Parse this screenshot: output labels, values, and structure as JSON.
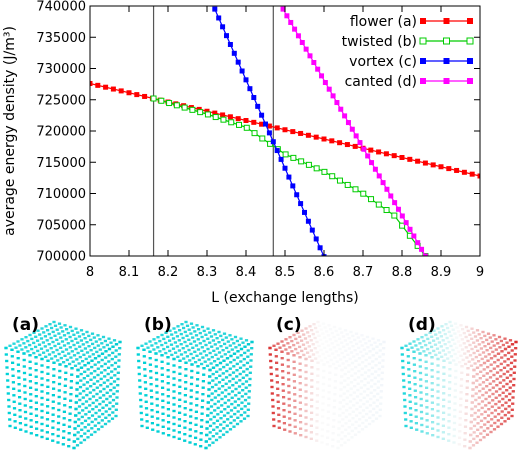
{
  "chart_data": {
    "type": "line",
    "xlabel": "L (exchange lengths)",
    "ylabel": "average energy density (J/m³)",
    "xlim": [
      8,
      9
    ],
    "ylim": [
      700000,
      740000
    ],
    "x_ticks": [
      "8",
      "8.1",
      "8.2",
      "8.3",
      "8.4",
      "8.5",
      "8.6",
      "8.7",
      "8.8",
      "8.9",
      "9"
    ],
    "y_ticks": [
      "700000",
      "705000",
      "710000",
      "715000",
      "720000",
      "725000",
      "730000",
      "735000",
      "740000"
    ],
    "vertical_lines": [
      8.163,
      8.47
    ],
    "grid": false,
    "legend_position": "top-right",
    "series": [
      {
        "name": "flower (a)",
        "color": "#ff0000",
        "marker": "filled-square",
        "points": [
          [
            8.0,
            727600
          ],
          [
            9.0,
            712800
          ]
        ],
        "step": 0.02
      },
      {
        "name": "twisted (b)",
        "color": "#00cc00",
        "marker": "open-square",
        "points": [
          [
            8.163,
            725200
          ],
          [
            8.3,
            722700
          ],
          [
            8.4,
            720600
          ],
          [
            8.5,
            716300
          ],
          [
            8.6,
            713500
          ],
          [
            8.7,
            710000
          ],
          [
            8.78,
            706500
          ],
          [
            8.86,
            700000
          ]
        ],
        "step": 0.02
      },
      {
        "name": "vortex (c)",
        "color": "#0000ff",
        "marker": "filled-square",
        "points": [
          [
            8.32,
            739500
          ],
          [
            8.6,
            699900
          ]
        ],
        "step": 0.01
      },
      {
        "name": "canted (d)",
        "color": "#ff00ff",
        "marker": "filled-square",
        "points": [
          [
            8.495,
            739500
          ],
          [
            8.86,
            700000
          ]
        ],
        "step": 0.01
      }
    ]
  },
  "panels": [
    {
      "label": "(a)",
      "scheme": "cyan"
    },
    {
      "label": "(b)",
      "scheme": "cyan"
    },
    {
      "label": "(c)",
      "scheme": "red-white"
    },
    {
      "label": "(d)",
      "scheme": "cyan-white-red"
    }
  ]
}
